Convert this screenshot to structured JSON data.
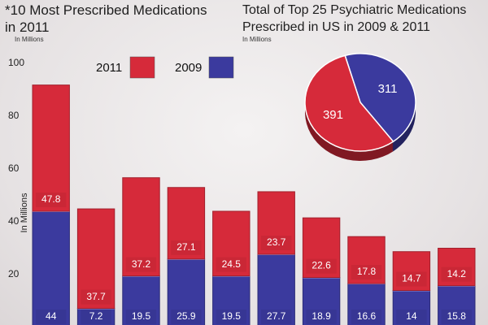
{
  "chart_data": [
    {
      "type": "bar",
      "title": "*10 Most Prescribed Medications in 2011",
      "subtitle": "In Millions",
      "y_label": "In Millions",
      "stacked": true,
      "categories": [
        null,
        null,
        null,
        null,
        null,
        null,
        null,
        null,
        null,
        null
      ],
      "series": [
        {
          "name": "2009",
          "color": "#3b3a9e",
          "values": [
            44,
            7.2,
            19.5,
            25.9,
            19.5,
            27.7,
            18.9,
            16.6,
            14,
            15.8
          ]
        },
        {
          "name": "2011",
          "color": "#d62a3a",
          "values": [
            47.8,
            37.7,
            37.2,
            27.1,
            24.5,
            23.7,
            22.6,
            17.8,
            14.7,
            14.2
          ]
        }
      ],
      "ylim": [
        0,
        100
      ],
      "yticks": [
        20,
        40,
        60,
        80,
        100
      ],
      "grid": false
    },
    {
      "type": "pie",
      "title": "Total of Top 25 Psychiatric Medications Prescribed in US in 2009 & 2011",
      "subtitle": "In Millions",
      "values": [
        311,
        391
      ],
      "colors": [
        "#3b3a9e",
        "#d62a3a"
      ]
    }
  ]
}
